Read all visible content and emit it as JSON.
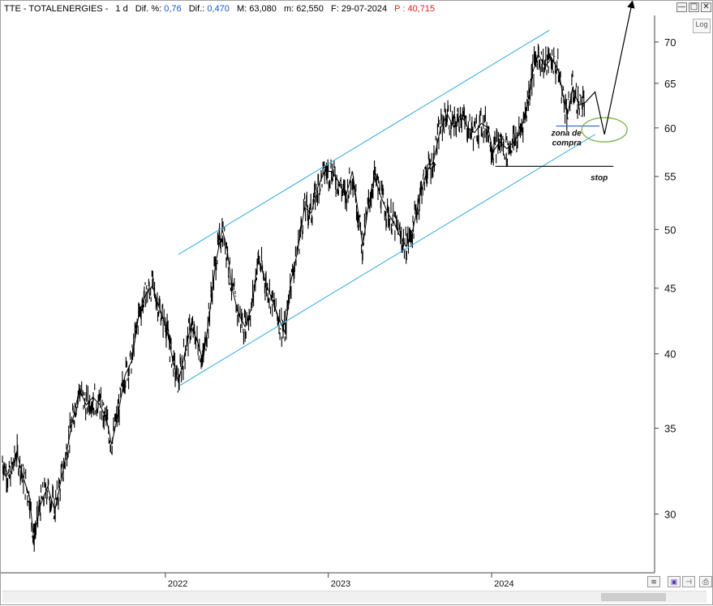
{
  "header": {
    "symbol": "TTE - TOTALENERGIES -",
    "period": "1 d",
    "dif_pct_label": "Dif. %:",
    "dif_pct_value": "0,76",
    "dif_label": "Dif.:",
    "dif_value": "0,470",
    "max_label": "M:",
    "max_value": "63,080",
    "min_label": "m:",
    "min_value": "62,550",
    "date_label": "F:",
    "date_value": "29-07-2024",
    "p_label": "P :",
    "p_value": "40,715",
    "accent_blue": "#1a56c8",
    "accent_red": "#e0201c"
  },
  "window_buttons": [
    "—",
    "□",
    "✕"
  ],
  "log_button": "Log",
  "chart_data": {
    "type": "line",
    "scale": "log",
    "ylim": [
      27,
      73
    ],
    "yticks": [
      30,
      35,
      40,
      45,
      50,
      55,
      60,
      65,
      70
    ],
    "xticks": [
      {
        "label": "2022",
        "date": "2022-01-03"
      },
      {
        "label": "2023",
        "date": "2023-01-02"
      },
      {
        "label": "2024",
        "date": "2024-01-02"
      }
    ],
    "xlim": [
      "2021-01-04",
      "2024-12-31"
    ],
    "series": [
      {
        "points": [
          [
            "2021-01-04",
            33.0
          ],
          [
            "2021-01-20",
            32.0
          ],
          [
            "2021-02-05",
            33.5
          ],
          [
            "2021-02-20",
            32.0
          ],
          [
            "2021-03-05",
            31.0
          ],
          [
            "2021-03-15",
            28.7
          ],
          [
            "2021-03-30",
            30.5
          ],
          [
            "2021-04-15",
            31.5
          ],
          [
            "2021-05-01",
            30.2
          ],
          [
            "2021-05-20",
            32.5
          ],
          [
            "2021-06-10",
            35.5
          ],
          [
            "2021-06-25",
            37.5
          ],
          [
            "2021-07-10",
            36.5
          ],
          [
            "2021-07-25",
            37.0
          ],
          [
            "2021-08-10",
            36.5
          ],
          [
            "2021-08-25",
            35.5
          ],
          [
            "2021-09-05",
            34.0
          ],
          [
            "2021-09-20",
            36.0
          ],
          [
            "2021-10-05",
            38.5
          ],
          [
            "2021-10-20",
            39.5
          ],
          [
            "2021-11-05",
            43.0
          ],
          [
            "2021-11-20",
            44.5
          ],
          [
            "2021-12-05",
            45.2
          ],
          [
            "2021-12-20",
            43.5
          ],
          [
            "2022-01-05",
            42.0
          ],
          [
            "2022-01-20",
            39.5
          ],
          [
            "2022-02-01",
            38.0
          ],
          [
            "2022-02-15",
            40.0
          ],
          [
            "2022-03-01",
            42.0
          ],
          [
            "2022-03-15",
            41.0
          ],
          [
            "2022-03-28",
            39.5
          ],
          [
            "2022-04-10",
            42.5
          ],
          [
            "2022-04-25",
            47.0
          ],
          [
            "2022-05-10",
            50.0
          ],
          [
            "2022-05-20",
            48.5
          ],
          [
            "2022-06-01",
            45.0
          ],
          [
            "2022-06-15",
            43.0
          ],
          [
            "2022-06-30",
            42.0
          ],
          [
            "2022-07-15",
            43.5
          ],
          [
            "2022-07-30",
            47.5
          ],
          [
            "2022-08-15",
            45.5
          ],
          [
            "2022-08-30",
            44.0
          ],
          [
            "2022-09-15",
            42.5
          ],
          [
            "2022-09-28",
            41.5
          ],
          [
            "2022-10-10",
            45.5
          ],
          [
            "2022-10-25",
            48.0
          ],
          [
            "2022-11-10",
            52.0
          ],
          [
            "2022-11-25",
            51.5
          ],
          [
            "2022-12-10",
            54.0
          ],
          [
            "2022-12-25",
            55.5
          ],
          [
            "2023-01-10",
            55.5
          ],
          [
            "2023-01-25",
            54.5
          ],
          [
            "2023-02-10",
            53.0
          ],
          [
            "2023-02-25",
            55.5
          ],
          [
            "2023-03-10",
            51.5
          ],
          [
            "2023-03-20",
            48.5
          ],
          [
            "2023-04-01",
            52.0
          ],
          [
            "2023-04-15",
            55.0
          ],
          [
            "2023-04-30",
            53.0
          ],
          [
            "2023-05-15",
            51.5
          ],
          [
            "2023-05-30",
            50.5
          ],
          [
            "2023-06-10",
            49.5
          ],
          [
            "2023-06-25",
            48.5
          ],
          [
            "2023-07-10",
            50.0
          ],
          [
            "2023-07-25",
            53.0
          ],
          [
            "2023-08-10",
            55.5
          ],
          [
            "2023-08-25",
            56.5
          ],
          [
            "2023-09-10",
            60.0
          ],
          [
            "2023-09-25",
            61.5
          ],
          [
            "2023-10-10",
            60.0
          ],
          [
            "2023-10-25",
            61.5
          ],
          [
            "2023-11-10",
            60.0
          ],
          [
            "2023-11-25",
            59.5
          ],
          [
            "2023-12-10",
            60.5
          ],
          [
            "2023-12-25",
            60.0
          ],
          [
            "2024-01-05",
            57.5
          ],
          [
            "2024-01-20",
            58.5
          ],
          [
            "2024-02-05",
            57.8
          ],
          [
            "2024-02-20",
            58.5
          ],
          [
            "2024-03-05",
            59.5
          ],
          [
            "2024-03-20",
            62.0
          ],
          [
            "2024-04-01",
            66.0
          ],
          [
            "2024-04-15",
            68.5
          ],
          [
            "2024-04-30",
            67.0
          ],
          [
            "2024-05-15",
            68.0
          ],
          [
            "2024-05-30",
            66.5
          ],
          [
            "2024-06-10",
            63.5
          ],
          [
            "2024-06-20",
            61.5
          ],
          [
            "2024-07-01",
            64.5
          ],
          [
            "2024-07-15",
            62.5
          ],
          [
            "2024-07-29",
            62.8
          ]
        ]
      }
    ],
    "channel_upper": {
      "start": [
        "2022-02-01",
        47.8
      ],
      "end": [
        "2024-05-10",
        71.5
      ]
    },
    "channel_lower": {
      "start": [
        "2022-02-05",
        37.8
      ],
      "end": [
        "2024-08-20",
        59.3
      ]
    },
    "zona_line": {
      "start": [
        "2024-05-25",
        60.2
      ],
      "end": [
        "2024-08-30",
        60.2
      ]
    },
    "stop_line": {
      "start": [
        "2024-01-10",
        56.0
      ],
      "end": [
        "2024-09-30",
        56.0
      ]
    },
    "projection": [
      [
        "2024-07-29",
        62.8
      ],
      [
        "2024-08-20",
        64.0
      ],
      [
        "2024-09-10",
        59.3
      ],
      [
        "2024-11-10",
        75.0
      ]
    ],
    "zone_ellipse": {
      "center": [
        "2024-09-10",
        59.8
      ]
    },
    "annotations": {
      "zona_line1": "zona de",
      "zona_line2": "compra",
      "stop": "stop"
    },
    "colors": {
      "price": "#000000",
      "channel": "#3fb0e0",
      "ellipse": "#7bb34a",
      "zona_line": "#2a62c9",
      "stop_line": "#000000",
      "projection": "#000000"
    }
  }
}
